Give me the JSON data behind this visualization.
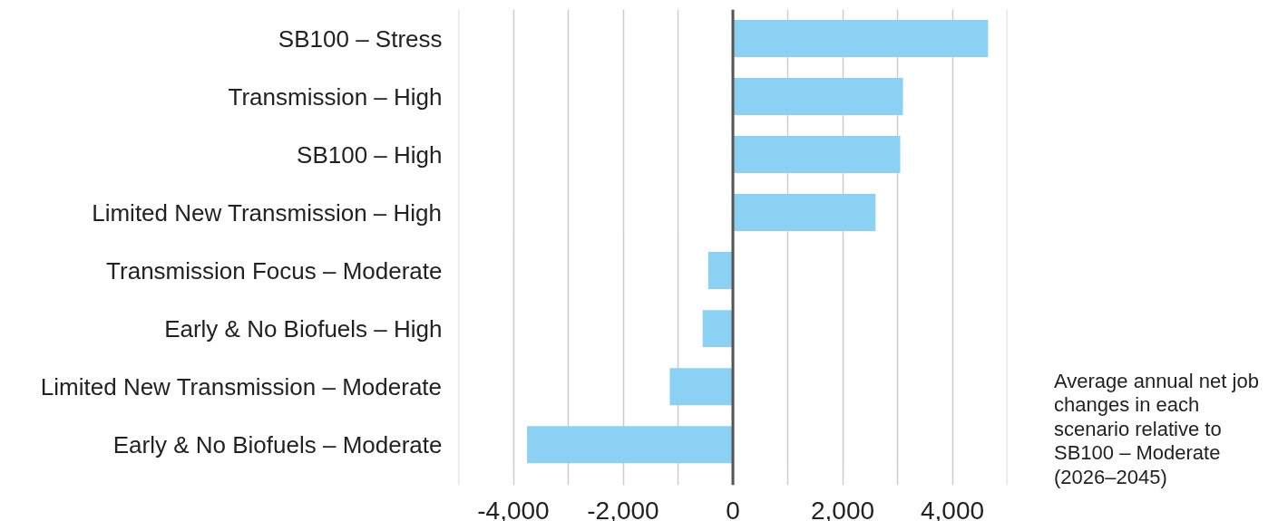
{
  "chart_data": {
    "type": "bar",
    "orientation": "horizontal",
    "categories": [
      "SB100 – Stress",
      "Transmission – High",
      "SB100 – High",
      "Limited New Transmission – High",
      "Transmission Focus – Moderate",
      "Early & No Biofuels – High",
      "Limited New Transmission – Moderate",
      "Early & No Biofuels – Moderate"
    ],
    "values": [
      4650,
      3100,
      3050,
      2600,
      -450,
      -550,
      -1150,
      -3750
    ],
    "color": "#8bd1f4",
    "xlim": [
      -5000,
      5000
    ],
    "xticks": [
      {
        "value": -5000,
        "label": null
      },
      {
        "value": -4000,
        "label": "-4,000"
      },
      {
        "value": -3000,
        "label": null
      },
      {
        "value": -2000,
        "label": "-2,000"
      },
      {
        "value": -1000,
        "label": null
      },
      0,
      {
        "value": 1000,
        "label": null
      },
      {
        "value": 2000,
        "label": "2,000"
      },
      {
        "value": 3000,
        "label": null
      },
      {
        "value": 4000,
        "label": "4,000"
      },
      {
        "value": 5000,
        "label": null
      }
    ],
    "grid": "x",
    "annotations": [
      "Average annual net job changes in each scenario relative to SB100 – Moderate (2026–2045)"
    ]
  }
}
